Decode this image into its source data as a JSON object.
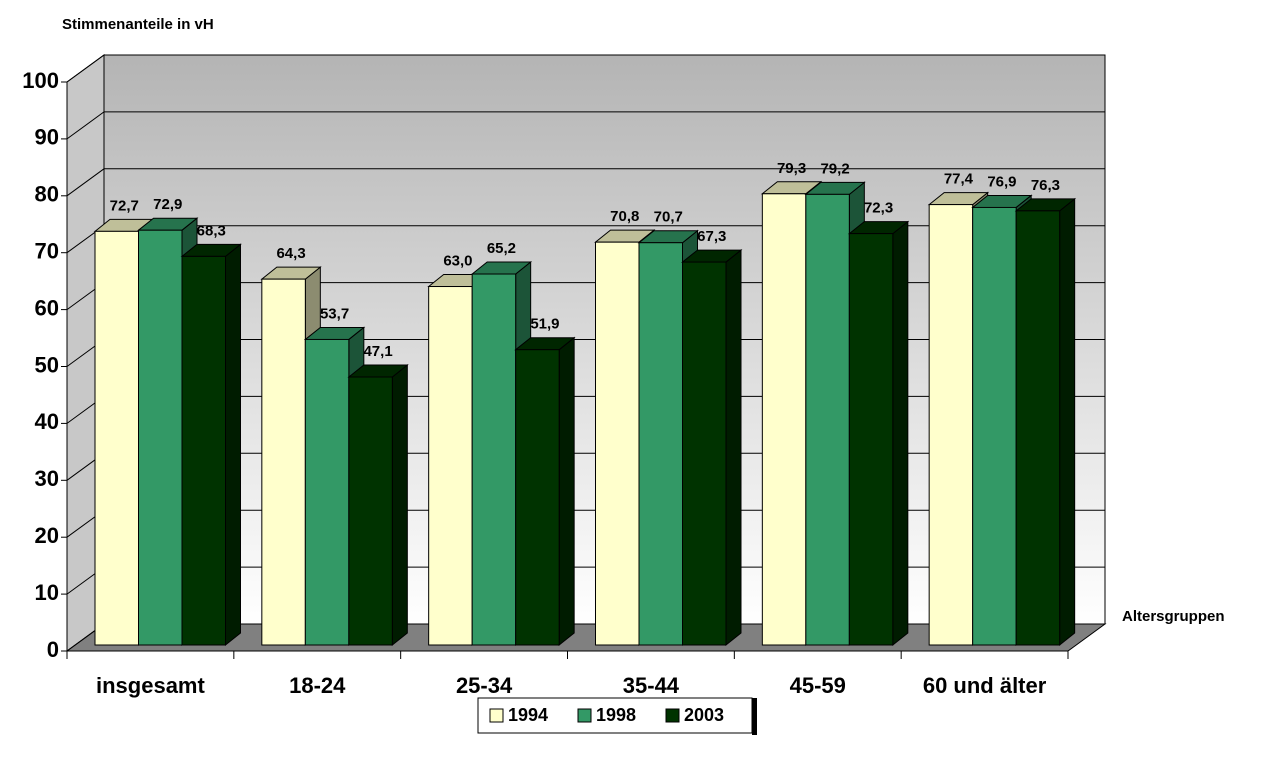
{
  "chart_data": {
    "type": "bar3d",
    "y_axis_label": "Stimmenanteile in vH",
    "x_axis_label": "Altersgruppen",
    "categories": [
      "insgesamt",
      "18-24",
      "25-34",
      "35-44",
      "45-59",
      "60 und älter"
    ],
    "series": [
      {
        "name": "1994",
        "color": "#ffffcc",
        "values": [
          72.7,
          64.3,
          63.0,
          70.8,
          79.3,
          77.4
        ],
        "value_labels": [
          "72,7",
          "64,3",
          "63,0",
          "70,8",
          "79,3",
          "77,4"
        ]
      },
      {
        "name": "1998",
        "color": "#339966",
        "values": [
          72.9,
          53.7,
          65.2,
          70.7,
          79.2,
          76.9
        ],
        "value_labels": [
          "72,9",
          "53,7",
          "65,2",
          "70,7",
          "79,2",
          "76,9"
        ]
      },
      {
        "name": "2003",
        "color": "#003300",
        "values": [
          68.3,
          47.1,
          51.9,
          67.3,
          72.3,
          76.3
        ],
        "value_labels": [
          "68,3",
          "47,1",
          "51,9",
          "67,3",
          "72,3",
          "76,3"
        ]
      }
    ],
    "ylim": [
      0,
      100
    ],
    "yticks": [
      0,
      10,
      20,
      30,
      40,
      50,
      60,
      70,
      80,
      90,
      100
    ],
    "grid": true,
    "legend": "bottom"
  }
}
